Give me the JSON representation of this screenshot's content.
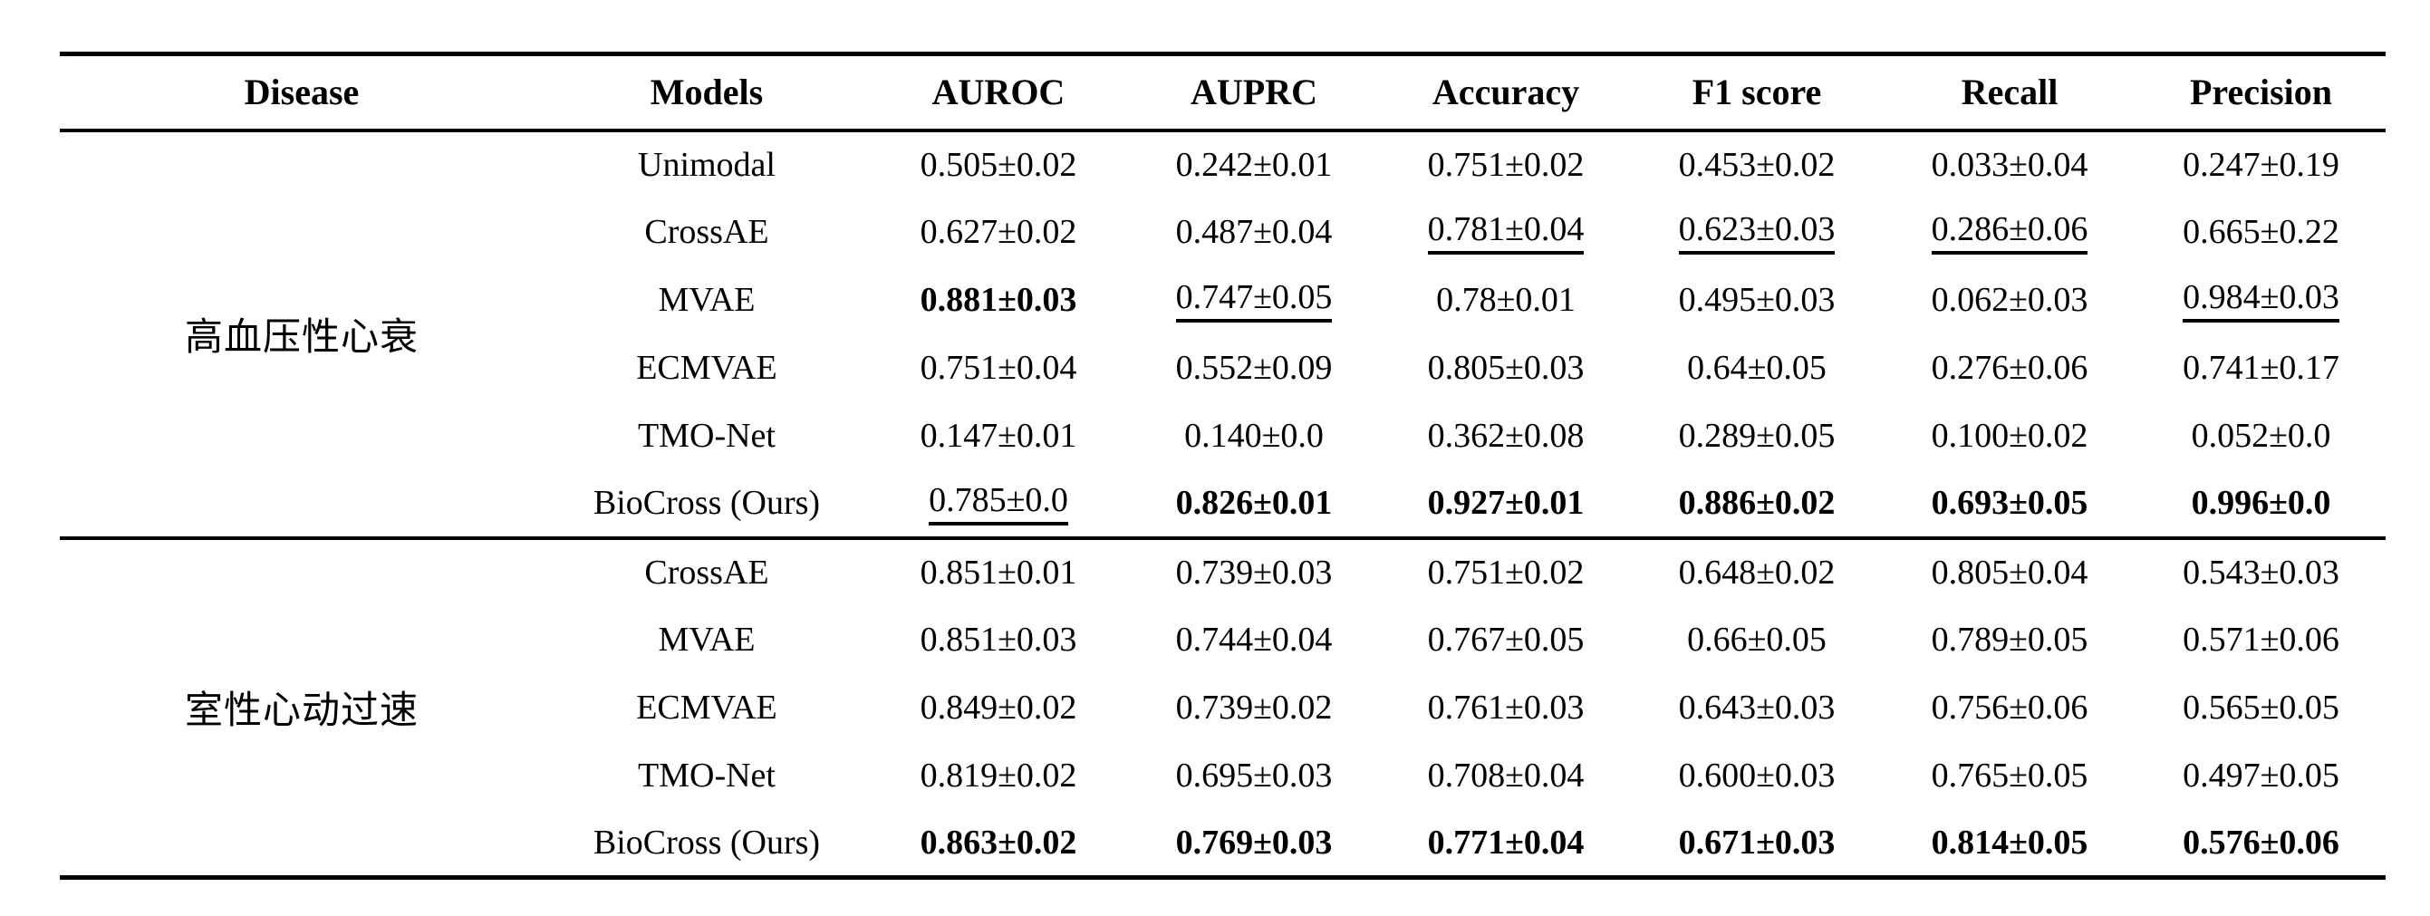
{
  "table": {
    "headers": [
      "Disease",
      "Models",
      "AUROC",
      "AUPRC",
      "Accuracy",
      "F1 score",
      "Recall",
      "Precision"
    ],
    "text_color": "#000000",
    "background_color": "#ffffff",
    "groups": [
      {
        "disease": "高血压性心衰",
        "rows": [
          {
            "model": "Unimodal",
            "values": [
              {
                "text": "0.505±0.02",
                "style": "normal"
              },
              {
                "text": "0.242±0.01",
                "style": "normal"
              },
              {
                "text": "0.751±0.02",
                "style": "normal"
              },
              {
                "text": "0.453±0.02",
                "style": "normal"
              },
              {
                "text": "0.033±0.04",
                "style": "normal"
              },
              {
                "text": "0.247±0.19",
                "style": "normal"
              }
            ]
          },
          {
            "model": "CrossAE",
            "values": [
              {
                "text": "0.627±0.02",
                "style": "normal"
              },
              {
                "text": "0.487±0.04",
                "style": "normal"
              },
              {
                "text": "0.781±0.04",
                "style": "underline"
              },
              {
                "text": "0.623±0.03",
                "style": "underline"
              },
              {
                "text": "0.286±0.06",
                "style": "underline"
              },
              {
                "text": "0.665±0.22",
                "style": "normal"
              }
            ]
          },
          {
            "model": "MVAE",
            "values": [
              {
                "text": "0.881±0.03",
                "style": "bold"
              },
              {
                "text": "0.747±0.05",
                "style": "underline"
              },
              {
                "text": "0.78±0.01",
                "style": "normal"
              },
              {
                "text": "0.495±0.03",
                "style": "normal"
              },
              {
                "text": "0.062±0.03",
                "style": "normal"
              },
              {
                "text": "0.984±0.03",
                "style": "underline"
              }
            ]
          },
          {
            "model": "ECMVAE",
            "values": [
              {
                "text": "0.751±0.04",
                "style": "normal"
              },
              {
                "text": "0.552±0.09",
                "style": "normal"
              },
              {
                "text": "0.805±0.03",
                "style": "normal"
              },
              {
                "text": "0.64±0.05",
                "style": "normal"
              },
              {
                "text": "0.276±0.06",
                "style": "normal"
              },
              {
                "text": "0.741±0.17",
                "style": "normal"
              }
            ]
          },
          {
            "model": "TMO-Net",
            "values": [
              {
                "text": "0.147±0.01",
                "style": "normal"
              },
              {
                "text": "0.140±0.0",
                "style": "normal"
              },
              {
                "text": "0.362±0.08",
                "style": "normal"
              },
              {
                "text": "0.289±0.05",
                "style": "normal"
              },
              {
                "text": "0.100±0.02",
                "style": "normal"
              },
              {
                "text": "0.052±0.0",
                "style": "normal"
              }
            ]
          },
          {
            "model": "BioCross (Ours)",
            "values": [
              {
                "text": "0.785±0.0",
                "style": "underline"
              },
              {
                "text": "0.826±0.01",
                "style": "bold"
              },
              {
                "text": "0.927±0.01",
                "style": "bold"
              },
              {
                "text": "0.886±0.02",
                "style": "bold"
              },
              {
                "text": "0.693±0.05",
                "style": "bold"
              },
              {
                "text": "0.996±0.0",
                "style": "bold"
              }
            ]
          }
        ]
      },
      {
        "disease": "室性心动过速",
        "rows": [
          {
            "model": "CrossAE",
            "values": [
              {
                "text": "0.851±0.01",
                "style": "normal"
              },
              {
                "text": "0.739±0.03",
                "style": "normal"
              },
              {
                "text": "0.751±0.02",
                "style": "normal"
              },
              {
                "text": "0.648±0.02",
                "style": "normal"
              },
              {
                "text": "0.805±0.04",
                "style": "normal"
              },
              {
                "text": "0.543±0.03",
                "style": "normal"
              }
            ]
          },
          {
            "model": "MVAE",
            "values": [
              {
                "text": "0.851±0.03",
                "style": "normal"
              },
              {
                "text": "0.744±0.04",
                "style": "normal"
              },
              {
                "text": "0.767±0.05",
                "style": "normal"
              },
              {
                "text": "0.66±0.05",
                "style": "normal"
              },
              {
                "text": "0.789±0.05",
                "style": "normal"
              },
              {
                "text": "0.571±0.06",
                "style": "normal"
              }
            ]
          },
          {
            "model": "ECMVAE",
            "values": [
              {
                "text": "0.849±0.02",
                "style": "normal"
              },
              {
                "text": "0.739±0.02",
                "style": "normal"
              },
              {
                "text": "0.761±0.03",
                "style": "normal"
              },
              {
                "text": "0.643±0.03",
                "style": "normal"
              },
              {
                "text": "0.756±0.06",
                "style": "normal"
              },
              {
                "text": "0.565±0.05",
                "style": "normal"
              }
            ]
          },
          {
            "model": "TMO-Net",
            "values": [
              {
                "text": "0.819±0.02",
                "style": "normal"
              },
              {
                "text": "0.695±0.03",
                "style": "normal"
              },
              {
                "text": "0.708±0.04",
                "style": "normal"
              },
              {
                "text": "0.600±0.03",
                "style": "normal"
              },
              {
                "text": "0.765±0.05",
                "style": "normal"
              },
              {
                "text": "0.497±0.05",
                "style": "normal"
              }
            ]
          },
          {
            "model": "BioCross (Ours)",
            "values": [
              {
                "text": "0.863±0.02",
                "style": "bold"
              },
              {
                "text": "0.769±0.03",
                "style": "bold"
              },
              {
                "text": "0.771±0.04",
                "style": "bold"
              },
              {
                "text": "0.671±0.03",
                "style": "bold"
              },
              {
                "text": "0.814±0.05",
                "style": "bold"
              },
              {
                "text": "0.576±0.06",
                "style": "bold"
              }
            ]
          }
        ]
      }
    ]
  }
}
